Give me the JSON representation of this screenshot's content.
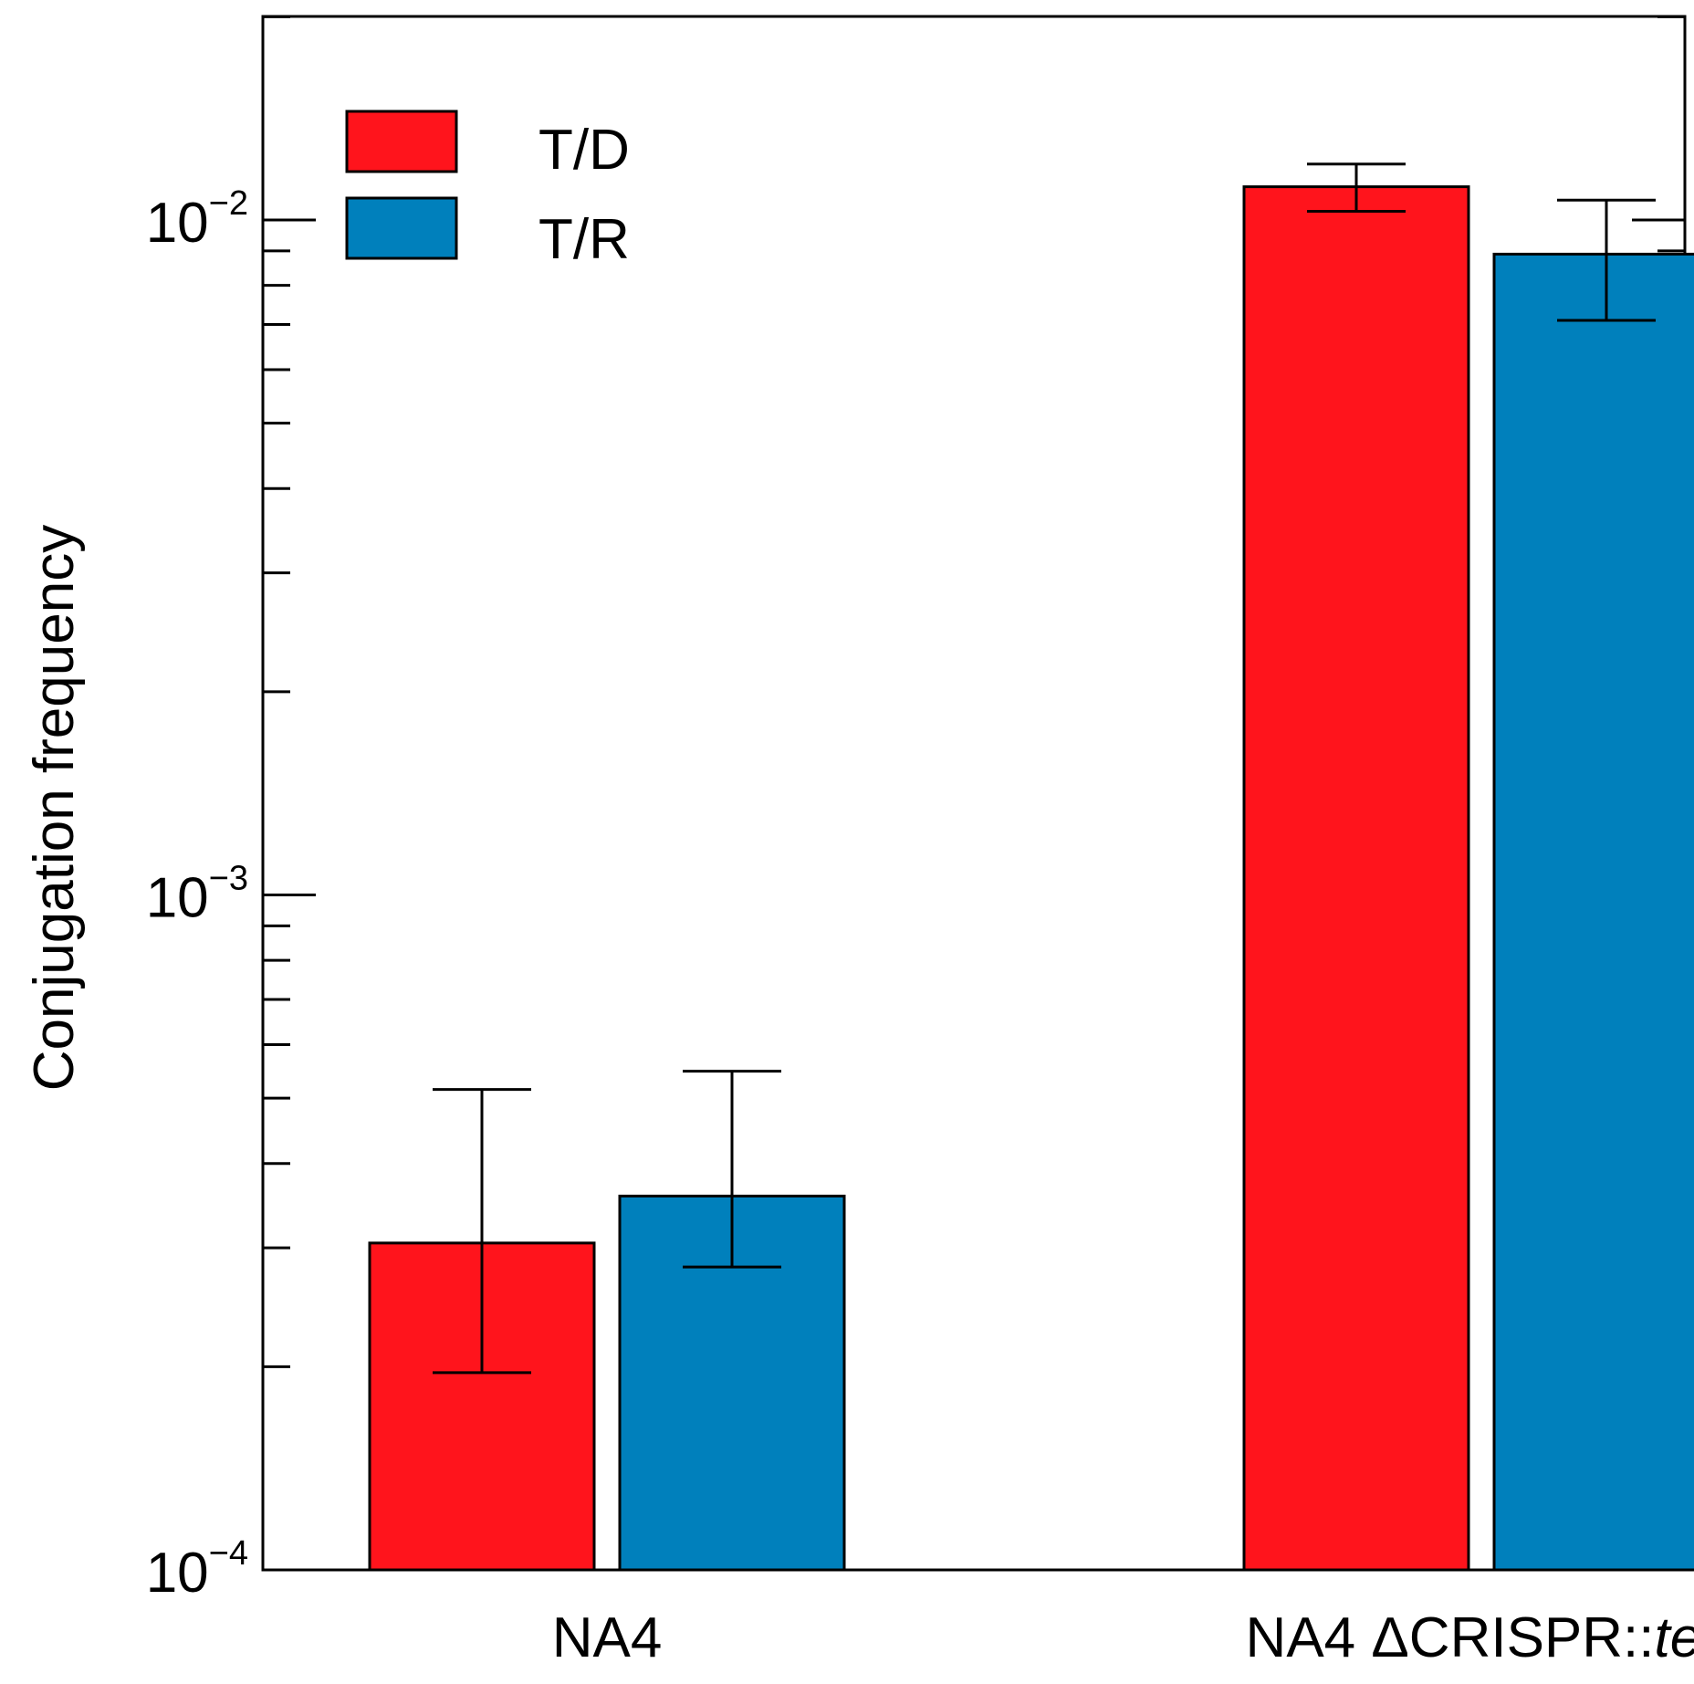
{
  "chart_data": {
    "type": "bar",
    "title": "",
    "xlabel": "",
    "ylabel": "Conjugation frequency",
    "yscale": "log",
    "ylim": [
      0.0001,
      0.029
    ],
    "y_ticks": [
      {
        "value": 0.0001,
        "base": "10",
        "exponent": "−4"
      },
      {
        "value": 0.001,
        "base": "10",
        "exponent": "−3"
      },
      {
        "value": 0.01,
        "base": "10",
        "exponent": "−2"
      }
    ],
    "categories": [
      {
        "label": "NA4",
        "italic_suffix": ""
      },
      {
        "label": "NA4 ΔCRISPR::",
        "italic_suffix": "tet"
      }
    ],
    "series": [
      {
        "name": "T/D",
        "color": "#FF141C",
        "values": [
          0.000305,
          0.0112
        ],
        "error_low": [
          0.000196,
          0.0103
        ],
        "error_high": [
          0.000515,
          0.0121
        ]
      },
      {
        "name": "T/R",
        "color": "#0080BC",
        "values": [
          0.000358,
          0.0089
        ],
        "error_low": [
          0.000281,
          0.0071
        ],
        "error_high": [
          0.000548,
          0.0107
        ]
      }
    ],
    "legend_position": "top-left",
    "grid": false
  }
}
